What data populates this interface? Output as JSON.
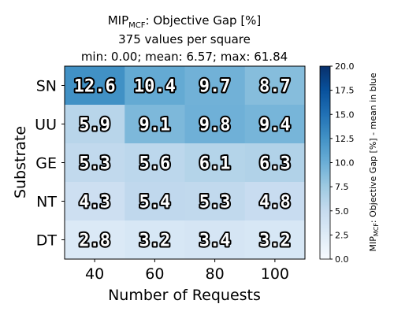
{
  "chart_data": {
    "type": "heatmap",
    "title_main": "MIP",
    "title_sub": "MCF",
    "title_rest": ": Objective Gap [%]",
    "title_line2": "375 values per square",
    "title_line3": "min: 0.00; mean: 6.57; max: 61.84",
    "xlabel": "Number of Requests",
    "ylabel": "Substrate",
    "x_categories": [
      "40",
      "60",
      "80",
      "100"
    ],
    "y_categories": [
      "SN",
      "UU",
      "GE",
      "NT",
      "DT"
    ],
    "values": [
      [
        12.6,
        10.4,
        9.7,
        8.7
      ],
      [
        5.9,
        9.1,
        9.8,
        9.4
      ],
      [
        5.3,
        5.6,
        6.1,
        6.3
      ],
      [
        4.3,
        5.4,
        5.3,
        4.8
      ],
      [
        2.8,
        3.2,
        3.4,
        3.2
      ]
    ],
    "value_labels": [
      [
        "12.6",
        "10.4",
        "9.7",
        "8.7"
      ],
      [
        "5.9",
        "9.1",
        "9.8",
        "9.4"
      ],
      [
        "5.3",
        "5.6",
        "6.1",
        "6.3"
      ],
      [
        "4.3",
        "5.4",
        "5.3",
        "4.8"
      ],
      [
        "2.8",
        "3.2",
        "3.4",
        "3.2"
      ]
    ],
    "colorbar": {
      "min": 0,
      "max": 20,
      "ticks": [
        "0.0",
        "2.5",
        "5.0",
        "7.5",
        "10.0",
        "12.5",
        "15.0",
        "17.5",
        "20.0"
      ],
      "label_main": "MIP",
      "label_sub": "MCF",
      "label_rest": ": Objective Gap [%] - mean in blue",
      "colormap": "Blues"
    }
  }
}
